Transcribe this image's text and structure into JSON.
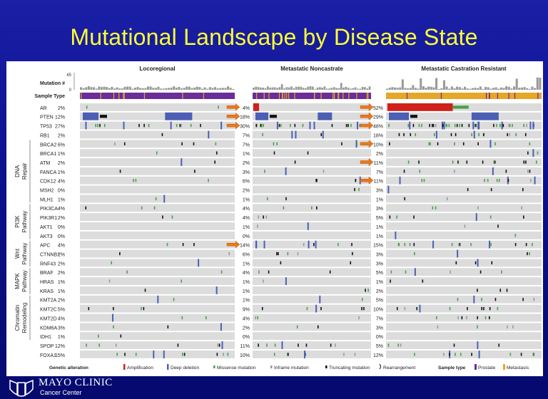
{
  "title": "Mutational Landscape by Disease State",
  "footer": {
    "org": "MAYO CLINIC",
    "sub": "Cancer Center"
  },
  "chart_data": {
    "type": "heatmap",
    "track_labels": {
      "mutation": "Mutation #",
      "sample_type": "Sample Type"
    },
    "mutation_axis_ticks": [
      "45",
      "0"
    ],
    "panels": [
      {
        "title": "Locoregional",
        "sample_type": "Prostate",
        "frequencies": [
          "2%",
          "12%",
          "27%",
          "2%",
          "6%",
          "1%",
          "2%",
          "1%",
          "4%",
          "0%",
          "1%",
          "4%",
          "2%",
          "0%",
          "0%",
          "4%",
          "2%",
          "2%",
          "2%",
          "1%",
          "1%",
          "2%",
          "5%",
          "4%",
          "3%",
          "1%",
          "12%",
          "15%"
        ]
      },
      {
        "title": "Metastatic Noncastrate",
        "sample_type": "Prostate",
        "frequencies": [
          "4%",
          "18%",
          "30%",
          "7%",
          "7%",
          "1%",
          "2%",
          "3%",
          "6%",
          "2%",
          "1%",
          "4%",
          "4%",
          "1%",
          "0%",
          "14%",
          "6%",
          "1%",
          "4%",
          "1%",
          "1%",
          "1%",
          "9%",
          "4%",
          "2%",
          "0%",
          "11%",
          "10%"
        ]
      },
      {
        "title": "Metastatic Castration Resistant",
        "sample_type": "Metastasis",
        "frequencies": [
          "52%",
          "29%",
          "48%",
          "18%",
          "10%",
          "2%",
          "11%",
          "7%",
          "11%",
          "3%",
          "1%",
          "3%",
          "5%",
          "1%",
          "1%",
          "15%",
          "3%",
          "3%",
          "5%",
          "1%",
          "2%",
          "5%",
          "10%",
          "7%",
          "3%",
          "0%",
          "5%",
          "12%"
        ]
      }
    ],
    "genes": [
      "AR",
      "PTEN",
      "TP53",
      "RB1",
      "BRCA2",
      "BRCA1",
      "ATM",
      "FANCA",
      "CDK12",
      "MSH2",
      "MLH1",
      "PIK3CA",
      "PIK3R1",
      "AKT1",
      "AKT3",
      "APC",
      "CTNNB1",
      "RNF43",
      "BRAF",
      "HRAS",
      "KRAS",
      "KMT2A",
      "KMT2C",
      "KMT2D",
      "KDM6A",
      "IDH1",
      "SPOP",
      "FOXA1"
    ],
    "pathway_groups": [
      {
        "label": "DNA Repair",
        "start": 4,
        "end": 10
      },
      {
        "label": "PI3K Pathway",
        "start": 11,
        "end": 14
      },
      {
        "label": "Wnt Pathway",
        "start": 15,
        "end": 17
      },
      {
        "label": "MAPK Pathway",
        "start": 18,
        "end": 20
      },
      {
        "label": "Chromatin Remodeling",
        "start": 21,
        "end": 25
      }
    ],
    "highlight_arrows": [
      {
        "gene": "AR",
        "panel": 2
      },
      {
        "gene": "PTEN",
        "panel": 2
      },
      {
        "gene": "TP53",
        "panel": 2
      },
      {
        "gene": "BRCA2",
        "panel": 2
      },
      {
        "gene": "ATM",
        "panel": 2
      },
      {
        "gene": "CDK12",
        "panel": 2
      },
      {
        "gene": "APC",
        "panel": 1
      },
      {
        "gene": "PTEN",
        "panel": 1
      },
      {
        "gene": "TP53",
        "panel": 1
      },
      {
        "gene": "AR",
        "panel": 1
      }
    ],
    "legend": {
      "alteration_title": "Genetic alteration",
      "alterations": [
        {
          "label": "Amplification",
          "color": "#d0201a"
        },
        {
          "label": "Deep deletion",
          "color": "#4c5fb5"
        },
        {
          "label": "Missense mutation",
          "color": "#4aa04a"
        },
        {
          "label": "Inframe mutation",
          "color": "#9a9a9a"
        },
        {
          "label": "Truncating mutation",
          "color": "#111111"
        },
        {
          "label": "Rearrangement",
          "color": "#111111"
        }
      ],
      "sample_title": "Sample type",
      "samples": [
        {
          "label": "Prostate",
          "color": "#6a2d9a"
        },
        {
          "label": "Metastasis",
          "color": "#e6a628"
        }
      ]
    }
  }
}
